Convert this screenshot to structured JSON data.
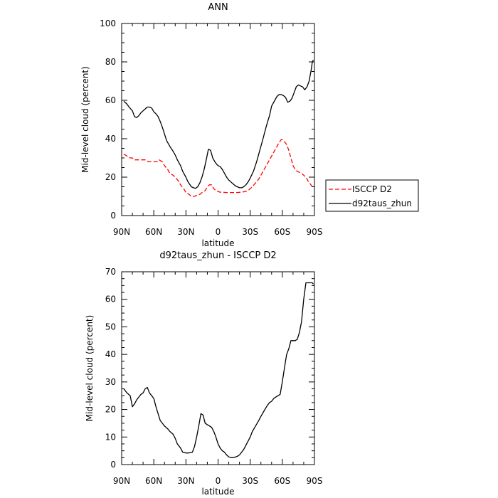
{
  "chart_data": [
    {
      "type": "line",
      "title": "ANN",
      "xlabel": "latitude",
      "ylabel": "Mid-level cloud (percent)",
      "xlim": [
        -90,
        90
      ],
      "ylim": [
        0,
        100
      ],
      "x_ticks": [
        -90,
        -60,
        -30,
        0,
        30,
        60,
        90
      ],
      "x_tick_labels": [
        "90N",
        "60N",
        "30N",
        "0",
        "30S",
        "60S",
        "90S"
      ],
      "y_ticks": [
        0,
        20,
        40,
        60,
        80,
        100
      ],
      "y_tick_labels": [
        "0",
        "20",
        "40",
        "60",
        "80",
        "100"
      ],
      "legend_position": "outside-right",
      "series": [
        {
          "name": "ISCCP D2",
          "color": "#ff0000",
          "style": "dashed",
          "x": [
            -88,
            -85,
            -82,
            -80,
            -78,
            -75,
            -72,
            -70,
            -68,
            -65,
            -62,
            -60,
            -57,
            -55,
            -52,
            -50,
            -47,
            -45,
            -42,
            -40,
            -37,
            -35,
            -32,
            -30,
            -27,
            -25,
            -22,
            -20,
            -17,
            -15,
            -12,
            -10,
            -8,
            -6,
            -4,
            -2,
            0,
            2,
            5,
            8,
            10,
            12,
            15,
            18,
            20,
            22,
            25,
            28,
            30,
            32,
            35,
            38,
            40,
            42,
            45,
            48,
            50,
            52,
            55,
            57,
            59,
            60,
            62,
            64,
            66,
            68,
            70,
            72,
            74,
            76,
            78,
            80,
            82,
            84,
            86,
            88
          ],
          "y": [
            32,
            31,
            30,
            30,
            29,
            29,
            29,
            29,
            29,
            28,
            28,
            28,
            28,
            29,
            28,
            26,
            24,
            22,
            21,
            20,
            18,
            16,
            14,
            12,
            11,
            10,
            10,
            10.5,
            11,
            12,
            13,
            15,
            16,
            16,
            14,
            13,
            12.5,
            12.2,
            12.1,
            12,
            12,
            12,
            12,
            12,
            12.1,
            12.2,
            12.5,
            13,
            14,
            15,
            17,
            19,
            21,
            23,
            26,
            29,
            31,
            33,
            36,
            38,
            39.5,
            39.5,
            38.5,
            37,
            34,
            30,
            26,
            24,
            23,
            22.5,
            22,
            21,
            20,
            18,
            16.5,
            15
          ]
        },
        {
          "name": "d92taus_zhun",
          "color": "#000000",
          "style": "solid",
          "x": [
            -88,
            -85,
            -83,
            -80,
            -78,
            -76,
            -74,
            -72,
            -70,
            -68,
            -66,
            -64,
            -62,
            -60,
            -58,
            -56,
            -54,
            -52,
            -50,
            -48,
            -45,
            -42,
            -40,
            -38,
            -35,
            -33,
            -30,
            -28,
            -25,
            -23,
            -21,
            -19,
            -17,
            -15,
            -13,
            -11,
            -9,
            -7,
            -5,
            -3,
            -1,
            0,
            2,
            4,
            6,
            8,
            10,
            12,
            14,
            16,
            18,
            20,
            22,
            24,
            26,
            28,
            30,
            33,
            36,
            39,
            42,
            45,
            48,
            50,
            53,
            55,
            57,
            59,
            61,
            63,
            65,
            67,
            69,
            71,
            73,
            75,
            77,
            79,
            81,
            83,
            85,
            87,
            88,
            89
          ],
          "y": [
            59.5,
            58,
            56.5,
            54.5,
            51.5,
            51,
            52,
            53.5,
            54.5,
            55.5,
            56.5,
            56.5,
            56,
            54,
            53,
            51.5,
            49,
            46,
            42.5,
            39,
            36,
            33.5,
            31.5,
            29,
            26,
            23,
            20,
            17.5,
            15,
            14.5,
            14.2,
            15,
            17,
            20,
            24,
            29,
            34.5,
            34,
            30,
            28,
            26.5,
            26,
            25.5,
            24,
            22,
            20,
            18.5,
            17.5,
            16.5,
            15.5,
            15,
            14.5,
            14.5,
            15,
            16,
            17.5,
            19.5,
            23,
            28,
            34,
            40,
            46.5,
            52,
            57,
            60,
            62,
            63,
            63,
            62.5,
            61.5,
            59,
            59.5,
            61,
            64,
            67,
            68,
            67.5,
            67,
            65.5,
            67,
            70,
            76,
            80,
            81
          ]
        }
      ]
    },
    {
      "type": "line",
      "title": "d92taus_zhun - ISCCP D2",
      "xlabel": "latitude",
      "ylabel": "Mid-level cloud (percent)",
      "xlim": [
        -90,
        90
      ],
      "ylim": [
        0,
        70
      ],
      "x_ticks": [
        -90,
        -60,
        -30,
        0,
        30,
        60,
        90
      ],
      "x_tick_labels": [
        "90N",
        "60N",
        "30N",
        "0",
        "30S",
        "60S",
        "90S"
      ],
      "y_ticks": [
        0,
        10,
        20,
        30,
        40,
        50,
        60,
        70
      ],
      "y_tick_labels": [
        "0",
        "10",
        "20",
        "30",
        "40",
        "50",
        "60",
        "70"
      ],
      "series": [
        {
          "color": "#000000",
          "style": "solid",
          "x": [
            -88,
            -85,
            -82,
            -80,
            -78,
            -76,
            -74,
            -72,
            -70,
            -68,
            -66,
            -64,
            -62,
            -60,
            -58,
            -56,
            -54,
            -52,
            -50,
            -47,
            -45,
            -42,
            -40,
            -38,
            -35,
            -33,
            -30,
            -28,
            -26,
            -24,
            -22,
            -20,
            -18,
            -16,
            -14,
            -12,
            -10,
            -8,
            -6,
            -4,
            -2,
            0,
            2,
            4,
            6,
            8,
            10,
            12,
            14,
            16,
            18,
            20,
            22,
            24,
            26,
            28,
            30,
            32,
            35,
            38,
            40,
            43,
            46,
            48,
            50,
            52,
            54,
            56,
            58,
            60,
            62,
            64,
            66,
            68,
            70,
            72,
            74,
            76,
            78,
            80,
            82,
            84,
            86,
            88,
            89
          ],
          "y": [
            27.5,
            26,
            25,
            21,
            22,
            23.5,
            24.5,
            25.5,
            26,
            27.5,
            28,
            26,
            25,
            24,
            21,
            18.5,
            16,
            15,
            14,
            13,
            12,
            11,
            9.5,
            7.5,
            6,
            4.5,
            4.2,
            4.2,
            4.3,
            4.5,
            6.5,
            10,
            14,
            18.5,
            18,
            15,
            14.5,
            14,
            13.5,
            12,
            10,
            7.5,
            6,
            5,
            4.5,
            3.5,
            2.8,
            2.5,
            2.5,
            2.7,
            3,
            3.5,
            4.5,
            5.5,
            7,
            8.5,
            10,
            12,
            14,
            16,
            17.5,
            19.5,
            21.5,
            22.5,
            23,
            24,
            24.5,
            25,
            25.5,
            30,
            35,
            40,
            42,
            45,
            45,
            45,
            45.5,
            48,
            52,
            60,
            66,
            66,
            66,
            66,
            65.5
          ]
        }
      ]
    }
  ]
}
